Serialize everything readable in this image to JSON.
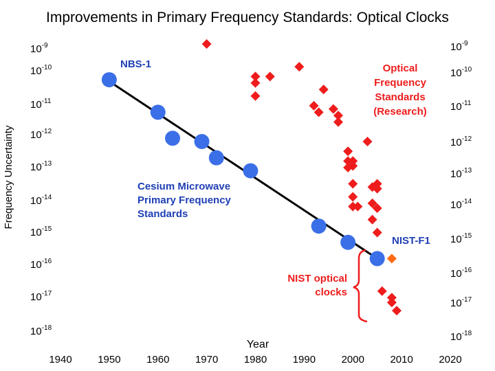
{
  "title": "Improvements in Primary Frequency Standards: Optical Clocks",
  "chart_data": {
    "type": "scatter",
    "title": "Improvements in Primary Frequency Standards: Optical Clocks",
    "xlabel": "Year",
    "ylabel": "Frequency Uncertainty",
    "xlim": [
      1940,
      2020
    ],
    "ylim_log10": [
      -18,
      -9
    ],
    "xticks": [
      "1940",
      "1950",
      "1960",
      "1970",
      "1980",
      "1990",
      "2000",
      "2010",
      "2020"
    ],
    "yticks_left": [
      {
        "base": "10",
        "exp": "-9"
      },
      {
        "base": "10",
        "exp": "-10"
      },
      {
        "base": "10",
        "exp": "-11"
      },
      {
        "base": "10",
        "exp": "-12"
      },
      {
        "base": "10",
        "exp": "-13"
      },
      {
        "base": "10",
        "exp": "-14"
      },
      {
        "base": "10",
        "exp": "-15"
      },
      {
        "base": "10",
        "exp": "-16"
      },
      {
        "base": "10",
        "exp": "-17"
      },
      {
        "base": "10",
        "exp": "-18"
      }
    ],
    "yticks_right": [
      {
        "base": "10",
        "exp": "-9"
      },
      {
        "base": "10",
        "exp": "-10"
      },
      {
        "base": "10",
        "exp": "-11"
      },
      {
        "base": "10",
        "exp": "-12"
      },
      {
        "base": "10",
        "exp": "-13"
      },
      {
        "base": "10",
        "exp": "-14"
      },
      {
        "base": "10",
        "exp": "-15"
      },
      {
        "base": "10",
        "exp": "-16"
      },
      {
        "base": "10",
        "exp": "-17"
      },
      {
        "base": "10",
        "exp": "-18"
      }
    ],
    "series": [
      {
        "name": "Cesium Microwave Primary Frequency Standards",
        "color": "#3b6fe8",
        "marker": "circle",
        "points": [
          {
            "x": 1950,
            "y": -10.1
          },
          {
            "x": 1960,
            "y": -11.1
          },
          {
            "x": 1963,
            "y": -11.9
          },
          {
            "x": 1969,
            "y": -12.0
          },
          {
            "x": 1972,
            "y": -12.5
          },
          {
            "x": 1979,
            "y": -12.9
          },
          {
            "x": 1993,
            "y": -14.6
          },
          {
            "x": 1999,
            "y": -15.1
          },
          {
            "x": 2005,
            "y": -15.6
          }
        ]
      },
      {
        "name": "Optical Frequency Standards (Research)",
        "color": "#ee1c1c",
        "marker": "diamond",
        "points": [
          {
            "x": 1970,
            "y": -9.0
          },
          {
            "x": 1980,
            "y": -10.0
          },
          {
            "x": 1980,
            "y": -10.2
          },
          {
            "x": 1983,
            "y": -10.0
          },
          {
            "x": 1980,
            "y": -10.6
          },
          {
            "x": 1989,
            "y": -9.7
          },
          {
            "x": 1994,
            "y": -10.4
          },
          {
            "x": 1992,
            "y": -10.9
          },
          {
            "x": 1993,
            "y": -11.1
          },
          {
            "x": 1996,
            "y": -11.0
          },
          {
            "x": 1997,
            "y": -11.2
          },
          {
            "x": 1997,
            "y": -11.4
          },
          {
            "x": 2003,
            "y": -12.0
          },
          {
            "x": 1999,
            "y": -12.3
          },
          {
            "x": 1999,
            "y": -12.6
          },
          {
            "x": 2000,
            "y": -12.6
          },
          {
            "x": 1999,
            "y": -12.8
          },
          {
            "x": 2000,
            "y": -12.75
          },
          {
            "x": 2000,
            "y": -13.3
          },
          {
            "x": 2004,
            "y": -13.4
          },
          {
            "x": 2005,
            "y": -13.3
          },
          {
            "x": 2005,
            "y": -13.45
          },
          {
            "x": 2000,
            "y": -13.7
          },
          {
            "x": 2004,
            "y": -13.9
          },
          {
            "x": 2000,
            "y": -14.0
          },
          {
            "x": 2001,
            "y": -14.0
          },
          {
            "x": 2005,
            "y": -14.05
          },
          {
            "x": 2004,
            "y": -14.4
          },
          {
            "x": 2005,
            "y": -14.8
          },
          {
            "x": 2006,
            "y": -16.6
          },
          {
            "x": 2008,
            "y": -16.8
          },
          {
            "x": 2008,
            "y": -16.95
          },
          {
            "x": 2009,
            "y": -17.2
          }
        ]
      },
      {
        "name": "NIST-F1",
        "color": "#ff6a13",
        "marker": "diamond",
        "points": [
          {
            "x": 2008,
            "y": -15.6
          }
        ]
      }
    ],
    "trend_line": {
      "from": {
        "x": 1950,
        "y": -10.15
      },
      "to": {
        "x": 2005,
        "y": -15.6
      },
      "color": "#000000"
    },
    "annotations": {
      "nbs1": "NBS-1",
      "cesium": [
        "Cesium Microwave",
        "Primary Frequency",
        "Standards"
      ],
      "optical": [
        "Optical",
        "Frequency",
        "Standards",
        "(Research)"
      ],
      "nistf1": "NIST-F1",
      "nist_optical": [
        "NIST optical",
        "clocks"
      ]
    }
  }
}
